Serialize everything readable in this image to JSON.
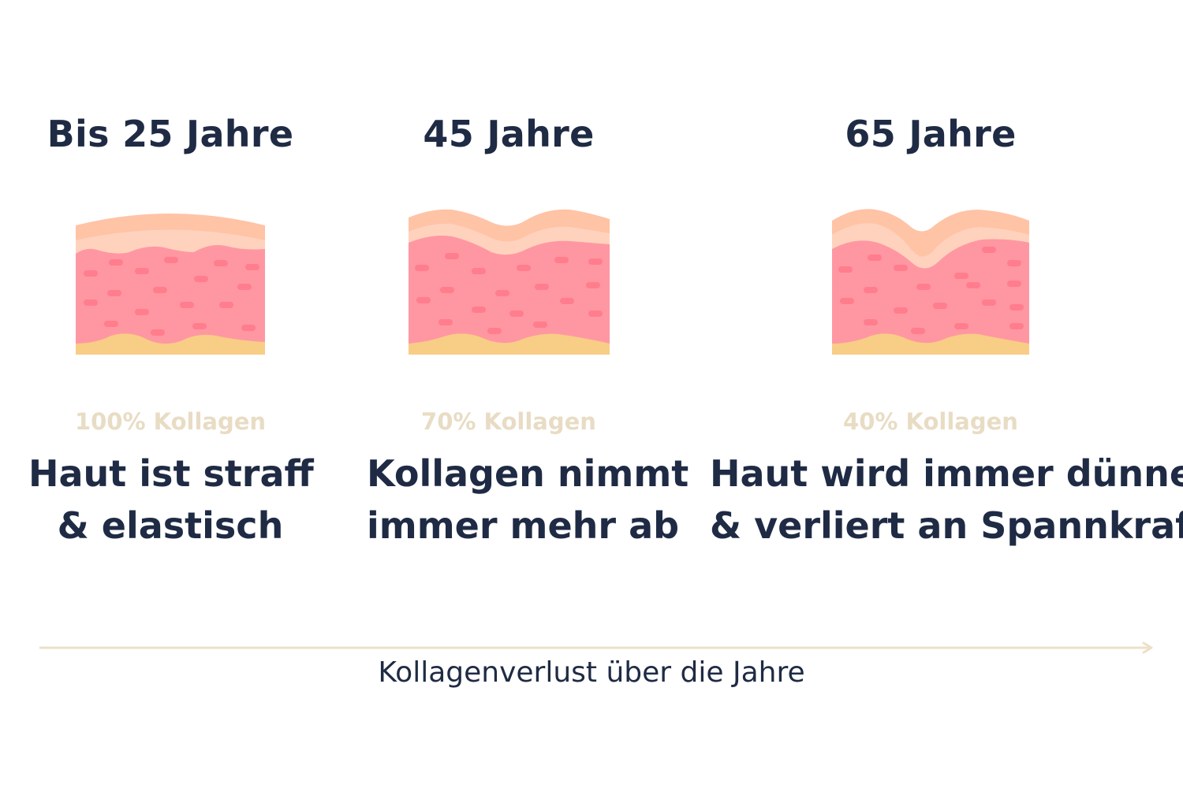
{
  "stages": [
    {
      "age": "Bis 25 Jahre",
      "collagen": "100% Kollagen",
      "description_line1": "Haut ist straff",
      "description_line2": "& elastisch",
      "icon": "skin-layer-smooth-icon"
    },
    {
      "age": "45 Jahre",
      "collagen": "70% Kollagen",
      "description_line1": "Kollagen nimmt",
      "description_line2": "immer mehr ab",
      "icon": "skin-layer-wavy-icon"
    },
    {
      "age": "65 Jahre",
      "collagen": "40% Kollagen",
      "description_line1": "Haut wird immer dünner",
      "description_line2": "& verliert an Spannkraft",
      "icon": "skin-layer-wrinkled-icon"
    }
  ],
  "axis": {
    "label": "Kollagenverlust über die Jahre"
  },
  "colors": {
    "heading": "#1f2b44",
    "collagen_text": "#e8dcc4",
    "epidermis_outer": "#ffc3a6",
    "epidermis_inner": "#ffd2bd",
    "dermis": "#ff97a2",
    "collagen_fiber": "#ff7d8d",
    "fat_layer": "#f8cd86",
    "axis_line": "#ece1c8"
  }
}
